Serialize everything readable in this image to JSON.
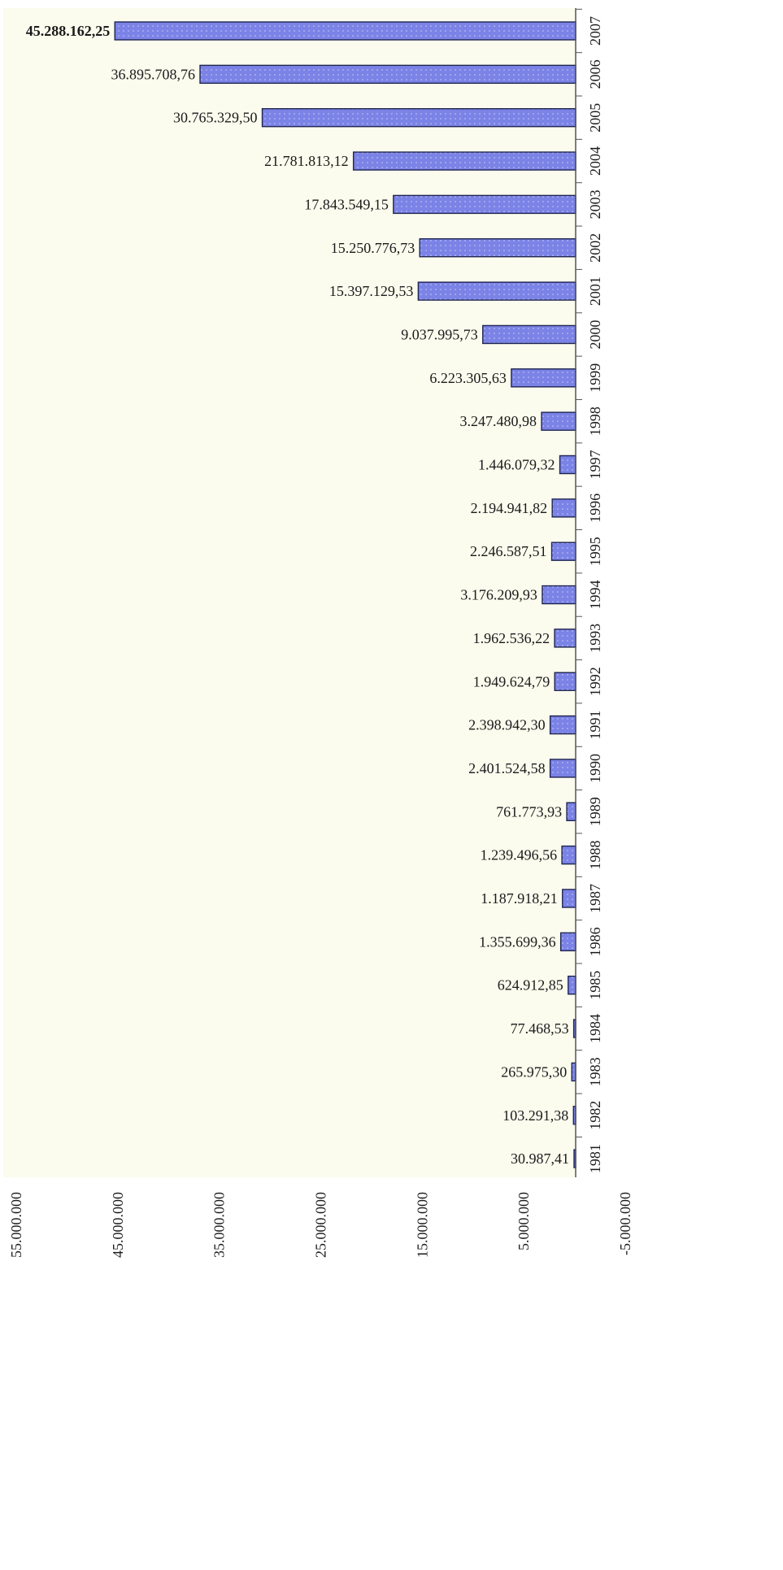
{
  "chart_data": {
    "type": "bar",
    "orientation": "horizontal",
    "title": "",
    "xlabel": "",
    "ylabel": "",
    "xlim": [
      -5000000,
      55000000
    ],
    "x_ticks": [
      55000000,
      45000000,
      35000000,
      25000000,
      15000000,
      5000000,
      -5000000
    ],
    "x_tick_labels": [
      "55.000.000",
      "45.000.000",
      "35.000.000",
      "25.000.000",
      "15.000.000",
      "5.000.000",
      "-5.000.000"
    ],
    "categories": [
      "2007",
      "2006",
      "2005",
      "2004",
      "2003",
      "2002",
      "2001",
      "2000",
      "1999",
      "1998",
      "1997",
      "1996",
      "1995",
      "1994",
      "1993",
      "1992",
      "1991",
      "1990",
      "1989",
      "1988",
      "1987",
      "1986",
      "1985",
      "1984",
      "1983",
      "1982",
      "1981"
    ],
    "values": [
      45288162.25,
      36895708.76,
      30765329.5,
      21781813.12,
      17843549.15,
      15250776.73,
      15397129.53,
      9037995.73,
      6223305.63,
      3247480.98,
      1446079.32,
      2194941.82,
      2246587.51,
      3176209.93,
      1962536.22,
      1949624.79,
      2398942.3,
      2401524.58,
      761773.93,
      1239496.56,
      1187918.21,
      1355699.36,
      624912.85,
      77468.53,
      265975.3,
      103291.38,
      30987.41
    ],
    "value_labels": [
      "45.288.162,25",
      "36.895.708,76",
      "30.765.329,50",
      "21.781.813,12",
      "17.843.549,15",
      "15.250.776,73",
      "15.397.129,53",
      "9.037.995,73",
      "6.223.305,63",
      "3.247.480,98",
      "1.446.079,32",
      "2.194.941,82",
      "2.246.587,51",
      "3.176.209,93",
      "1.962.536,22",
      "1.949.624,79",
      "2.398.942,30",
      "2.401.524,58",
      "761.773,93",
      "1.239.496,56",
      "1.187.918,21",
      "1.355.699,36",
      "624.912,85",
      "77.468,53",
      "265.975,30",
      "103.291,38",
      "30.987,41"
    ],
    "grid": false,
    "legend": "none",
    "colors": {
      "bar_fill": "#7b83e6",
      "bar_stroke": "#1f2550",
      "plot_background": "#fbfbee",
      "axis": "#555555"
    }
  }
}
